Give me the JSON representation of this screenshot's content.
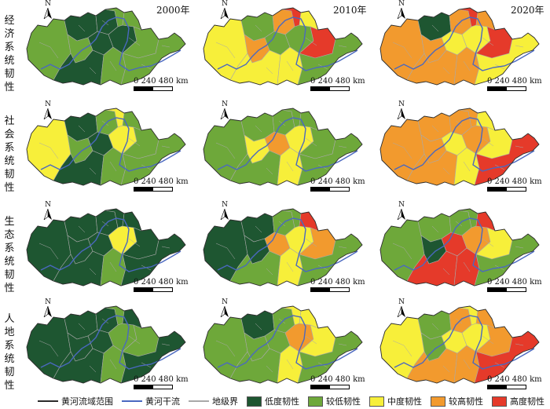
{
  "row_labels": [
    [
      "经",
      "济",
      "系",
      "统",
      "韧",
      "性"
    ],
    [
      "社",
      "会",
      "系",
      "统",
      "韧",
      "性"
    ],
    [
      "生",
      "态",
      "系",
      "统",
      "韧",
      "性"
    ],
    [
      "人",
      "地",
      "系",
      "统",
      "韧",
      "性"
    ]
  ],
  "years": [
    "2000年",
    "2010年",
    "2020年"
  ],
  "north_letter": "N",
  "scale_text": "0  240 480 km",
  "colors": {
    "low": "#1e5631",
    "lower": "#6ea83a",
    "medium": "#f7ef3a",
    "higher": "#f29a2e",
    "high": "#e53a2a",
    "boundary_line": "#2b2b2b",
    "mainstream": "#4a68c0",
    "prefecture_line": "#a9a9a9"
  },
  "legend": [
    {
      "label": "黄河流域范围",
      "kind": "line",
      "color": "#2b2b2b"
    },
    {
      "label": "黄河干流",
      "kind": "line",
      "color": "#4a68c0"
    },
    {
      "label": "地级界",
      "kind": "line",
      "color": "#a9a9a9"
    },
    {
      "label": "低度韧性",
      "kind": "fill",
      "color": "#1e5631"
    },
    {
      "label": "较低韧性",
      "kind": "fill",
      "color": "#6ea83a"
    },
    {
      "label": "中度韧性",
      "kind": "fill",
      "color": "#f7ef3a"
    },
    {
      "label": "较高韧性",
      "kind": "fill",
      "color": "#f29a2e"
    },
    {
      "label": "高度韧性",
      "kind": "fill",
      "color": "#e53a2a"
    }
  ],
  "maps": [
    {
      "row": 0,
      "col": 0,
      "zones": [
        "lower",
        "low",
        "lower",
        "low",
        "lower",
        "low",
        "low",
        "lower",
        "low",
        "lower",
        "lower",
        "lower"
      ]
    },
    {
      "row": 0,
      "col": 1,
      "zones": [
        "medium",
        "lower",
        "higher",
        "higher",
        "high",
        "lower",
        "medium",
        "medium",
        "lower",
        "medium",
        "high",
        "lower"
      ]
    },
    {
      "row": 0,
      "col": 2,
      "zones": [
        "higher",
        "low",
        "higher",
        "higher",
        "high",
        "medium",
        "higher",
        "higher",
        "medium",
        "higher",
        "high",
        "medium"
      ]
    },
    {
      "row": 1,
      "col": 0,
      "zones": [
        "medium",
        "low",
        "lower",
        "lower",
        "medium",
        "low",
        "low",
        "lower",
        "medium",
        "lower",
        "lower",
        "lower"
      ]
    },
    {
      "row": 1,
      "col": 1,
      "zones": [
        "lower",
        "lower",
        "medium",
        "lower",
        "lower",
        "higher",
        "lower",
        "medium",
        "medium",
        "lower",
        "lower",
        "lower"
      ]
    },
    {
      "row": 1,
      "col": 2,
      "zones": [
        "higher",
        "higher",
        "higher",
        "higher",
        "higher",
        "medium",
        "higher",
        "medium",
        "higher",
        "medium",
        "medium",
        "high"
      ]
    },
    {
      "row": 2,
      "col": 0,
      "zones": [
        "low",
        "low",
        "low",
        "low",
        "low",
        "low",
        "low",
        "lower",
        "medium",
        "low",
        "low",
        "low"
      ]
    },
    {
      "row": 2,
      "col": 1,
      "zones": [
        "low",
        "low",
        "low",
        "lower",
        "lower",
        "higher",
        "lower",
        "medium",
        "medium",
        "high",
        "higher",
        "lower"
      ]
    },
    {
      "row": 2,
      "col": 2,
      "zones": [
        "lower",
        "lower",
        "low",
        "lower",
        "lower",
        "high",
        "high",
        "high",
        "higher",
        "high",
        "medium",
        "lower"
      ]
    },
    {
      "row": 3,
      "col": 0,
      "zones": [
        "low",
        "low",
        "low",
        "low",
        "lower",
        "low",
        "low",
        "lower",
        "lower",
        "low",
        "lower",
        "low"
      ]
    },
    {
      "row": 3,
      "col": 1,
      "zones": [
        "lower",
        "low",
        "lower",
        "lower",
        "medium",
        "lower",
        "lower",
        "medium",
        "higher",
        "medium",
        "medium",
        "lower"
      ]
    },
    {
      "row": 3,
      "col": 2,
      "zones": [
        "medium",
        "lower",
        "lower",
        "higher",
        "medium",
        "medium",
        "higher",
        "higher",
        "medium",
        "higher",
        "higher",
        "high"
      ]
    }
  ]
}
